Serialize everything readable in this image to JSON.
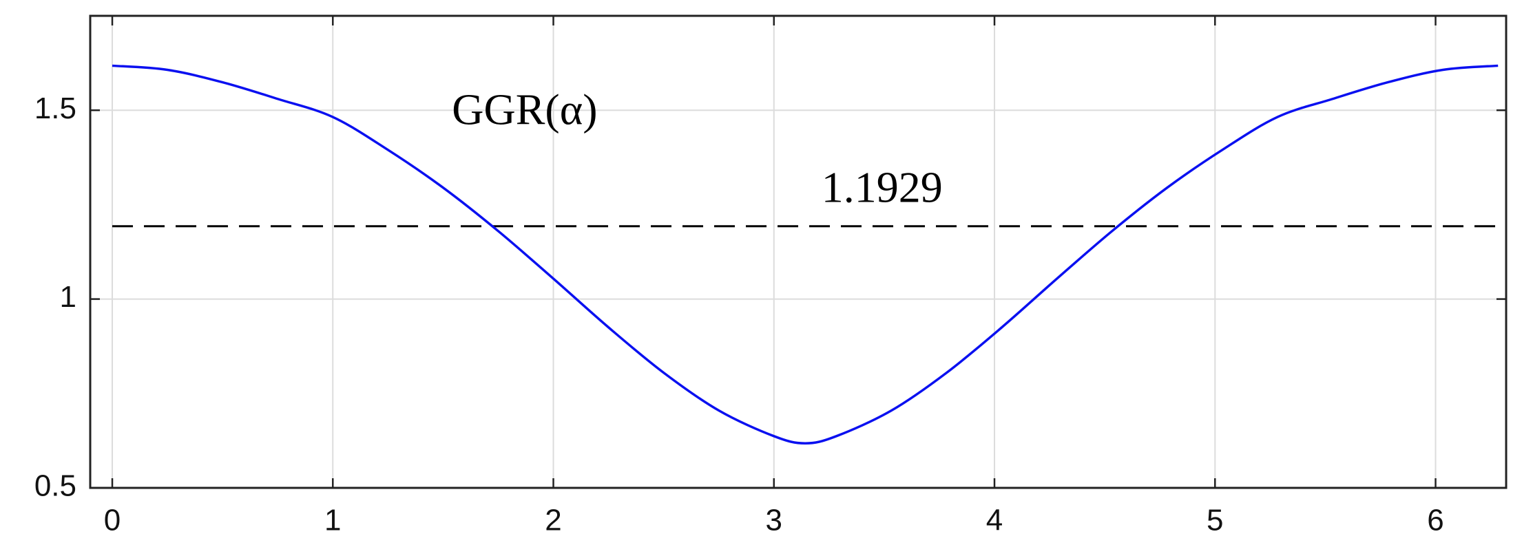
{
  "chart_data": {
    "type": "line",
    "annotations": [
      "GGR(α)"
    ],
    "x": [
      0,
      0.25,
      0.5,
      0.75,
      1.0,
      1.25,
      1.5,
      1.75,
      2.0,
      2.25,
      2.5,
      2.75,
      3.0,
      3.1416,
      3.2832,
      3.5332,
      3.7832,
      4.0332,
      4.2832,
      4.5332,
      4.7832,
      5.0332,
      5.2832,
      5.5332,
      5.7832,
      6.0332,
      6.2832
    ],
    "series": [
      {
        "color": "#0a10f0",
        "values": [
          1.618,
          1.607,
          1.574,
          1.53,
          1.482,
          1.395,
          1.295,
          1.18,
          1.054,
          0.925,
          0.805,
          0.705,
          0.637,
          0.618,
          0.637,
          0.705,
          0.805,
          0.925,
          1.054,
          1.18,
          1.295,
          1.395,
          1.482,
          1.53,
          1.574,
          1.607,
          1.618
        ]
      }
    ],
    "hline": {
      "value": 1.1929,
      "color": "#000000",
      "dashed": true
    },
    "xlim": [
      -0.1,
      6.32
    ],
    "ylim": [
      0.5,
      1.75
    ],
    "xticks": [
      0,
      1,
      2,
      3,
      4,
      5,
      6
    ],
    "yticks": [
      0.5,
      1,
      1.5
    ],
    "grid": true
  }
}
